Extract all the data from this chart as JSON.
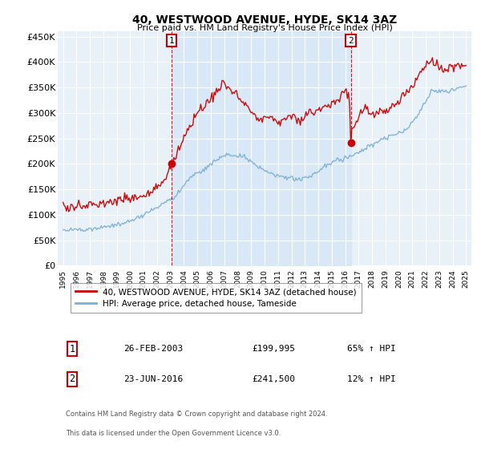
{
  "title": "40, WESTWOOD AVENUE, HYDE, SK14 3AZ",
  "subtitle": "Price paid vs. HM Land Registry's House Price Index (HPI)",
  "ylim": [
    0,
    460000
  ],
  "yticks": [
    0,
    50000,
    100000,
    150000,
    200000,
    250000,
    300000,
    350000,
    400000,
    450000
  ],
  "ytick_labels": [
    "£0",
    "£50K",
    "£100K",
    "£150K",
    "£200K",
    "£250K",
    "£300K",
    "£350K",
    "£400K",
    "£450K"
  ],
  "background_color": "#e8f0f8",
  "plot_bg_color": "#e8f0f8",
  "legend_entry1": "40, WESTWOOD AVENUE, HYDE, SK14 3AZ (detached house)",
  "legend_entry2": "HPI: Average price, detached house, Tameside",
  "line1_color": "#cc0000",
  "line2_color": "#7aafd4",
  "shade_color": "#d0e4f5",
  "marker1_x": 2003.083,
  "marker1_price": 199995,
  "marker2_x": 2016.417,
  "marker2_price": 241500,
  "footer1": "Contains HM Land Registry data © Crown copyright and database right 2024.",
  "footer2": "This data is licensed under the Open Government Licence v3.0.",
  "table": [
    {
      "num": "1",
      "date": "26-FEB-2003",
      "price": "£199,995",
      "hpi": "65% ↑ HPI"
    },
    {
      "num": "2",
      "date": "23-JUN-2016",
      "price": "£241,500",
      "hpi": "12% ↑ HPI"
    }
  ]
}
